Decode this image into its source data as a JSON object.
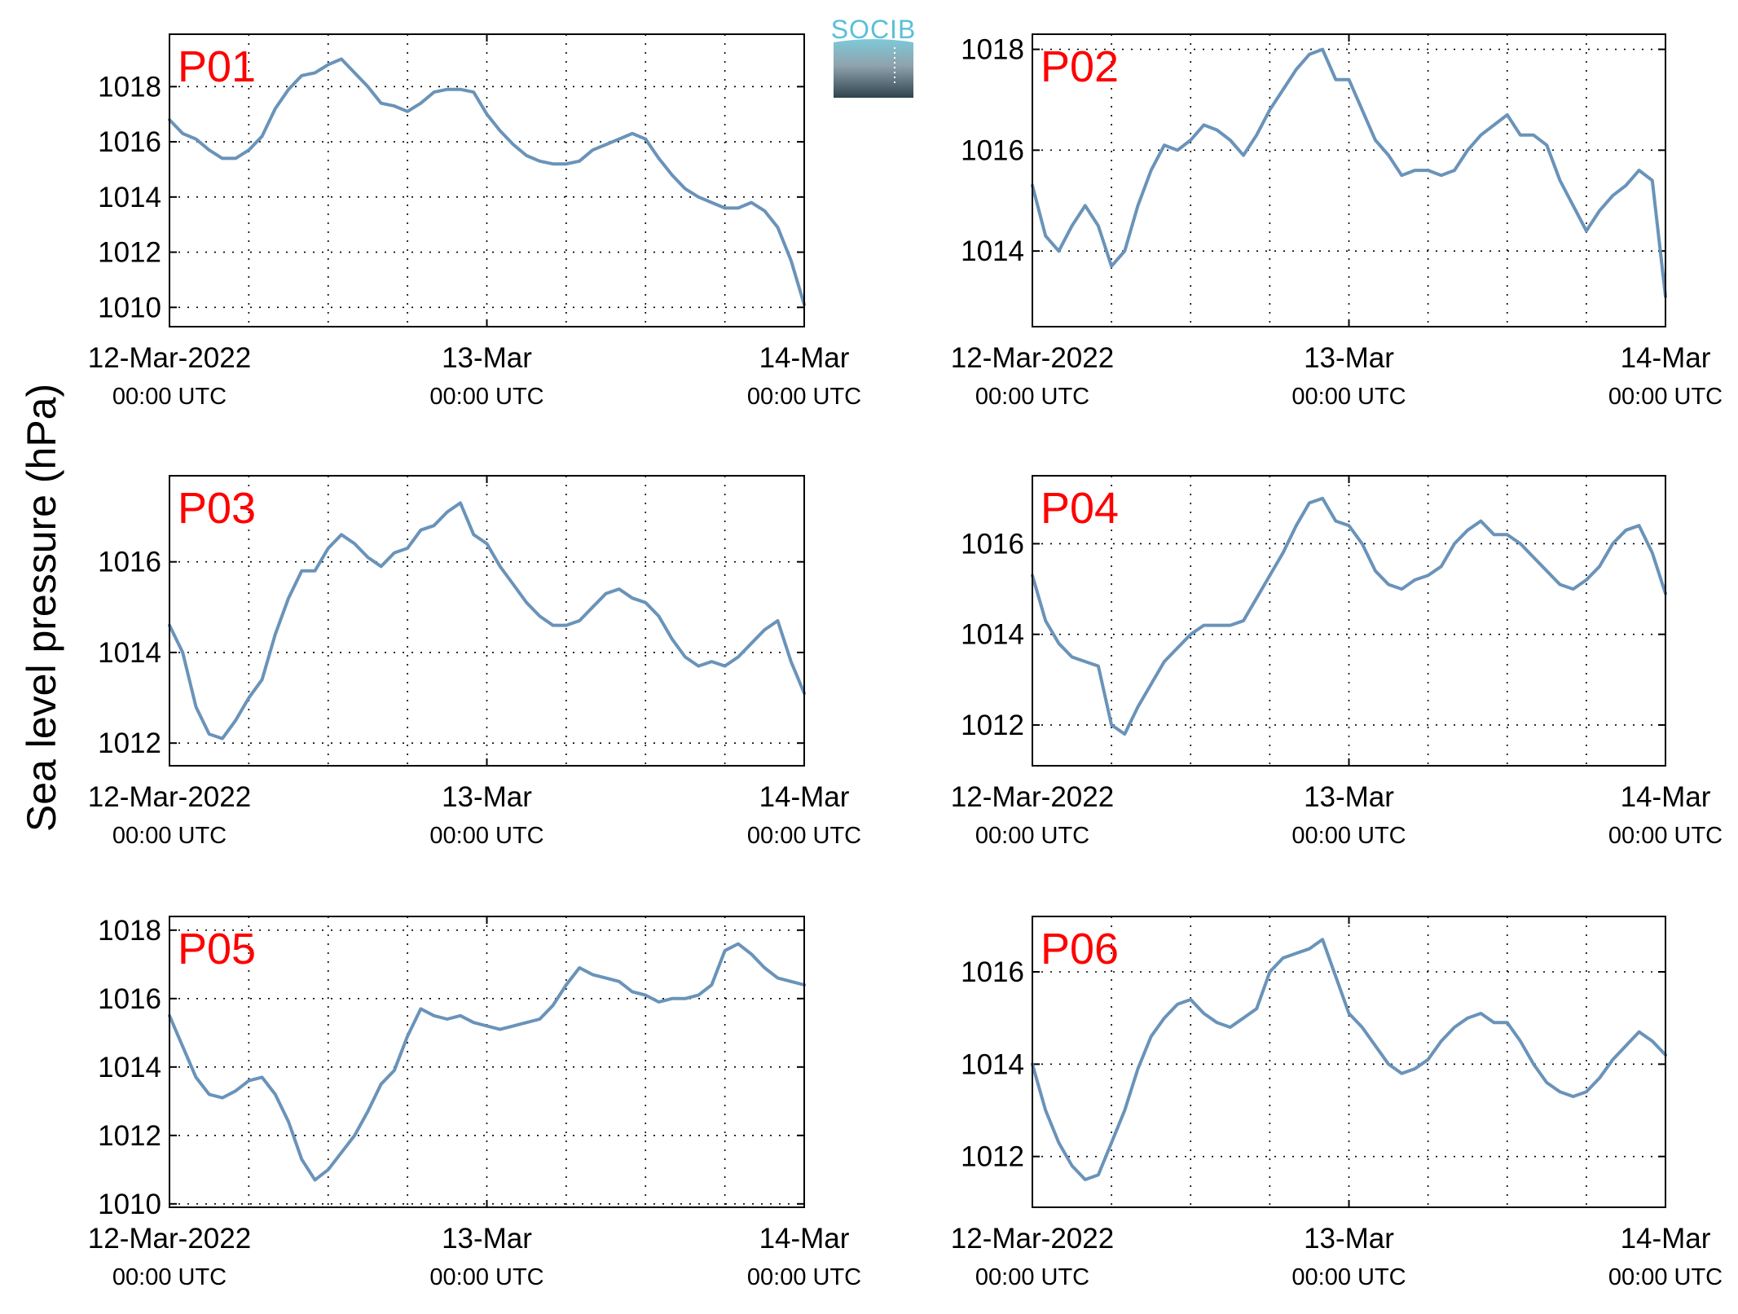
{
  "ylabel": "Sea level pressure (hPa)",
  "logo": {
    "text": "SOCIB"
  },
  "colors": {
    "series": "#6a93b9",
    "panel_label": "#ff0000"
  },
  "x_ticks": [
    {
      "main": "12-Mar-2022",
      "sub": "00:00 UTC",
      "hours": 0
    },
    {
      "main": "13-Mar",
      "sub": "00:00 UTC",
      "hours": 24
    },
    {
      "main": "14-Mar",
      "sub": "00:00 UTC",
      "hours": 48
    }
  ],
  "chart_data": [
    {
      "type": "line",
      "label": "P01",
      "x_unit": "hours since 12-Mar-2022 00:00 UTC",
      "xlim": [
        0,
        48
      ],
      "ylim": [
        1009.3,
        1019.9
      ],
      "yticks": [
        1010,
        1012,
        1014,
        1016,
        1018
      ],
      "grid": true,
      "x": [
        0,
        1,
        2,
        3,
        4,
        5,
        6,
        7,
        8,
        9,
        10,
        11,
        12,
        13,
        14,
        15,
        16,
        17,
        18,
        19,
        20,
        21,
        22,
        23,
        24,
        25,
        26,
        27,
        28,
        29,
        30,
        31,
        32,
        33,
        34,
        35,
        36,
        37,
        38,
        39,
        40,
        41,
        42,
        43,
        44,
        45,
        46,
        47,
        48
      ],
      "y": [
        1016.8,
        1016.3,
        1016.1,
        1015.7,
        1015.4,
        1015.4,
        1015.7,
        1016.2,
        1017.2,
        1017.9,
        1018.4,
        1018.5,
        1018.8,
        1019.0,
        1018.5,
        1018.0,
        1017.4,
        1017.3,
        1017.1,
        1017.4,
        1017.8,
        1017.9,
        1017.9,
        1017.8,
        1017.0,
        1016.4,
        1015.9,
        1015.5,
        1015.3,
        1015.2,
        1015.2,
        1015.3,
        1015.7,
        1015.9,
        1016.1,
        1016.3,
        1016.1,
        1015.4,
        1014.8,
        1014.3,
        1014.0,
        1013.8,
        1013.6,
        1013.6,
        1013.8,
        1013.5,
        1012.9,
        1011.7,
        1010.1
      ]
    },
    {
      "type": "line",
      "label": "P02",
      "x_unit": "hours since 12-Mar-2022 00:00 UTC",
      "xlim": [
        0,
        48
      ],
      "ylim": [
        1012.5,
        1018.3
      ],
      "yticks": [
        1014,
        1016,
        1018
      ],
      "grid": true,
      "x": [
        0,
        1,
        2,
        3,
        4,
        5,
        6,
        7,
        8,
        9,
        10,
        11,
        12,
        13,
        14,
        15,
        16,
        17,
        18,
        19,
        20,
        21,
        22,
        23,
        24,
        25,
        26,
        27,
        28,
        29,
        30,
        31,
        32,
        33,
        34,
        35,
        36,
        37,
        38,
        39,
        40,
        41,
        42,
        43,
        44,
        45,
        46,
        47,
        48
      ],
      "y": [
        1015.3,
        1014.3,
        1014.0,
        1014.5,
        1014.9,
        1014.5,
        1013.7,
        1014.0,
        1014.9,
        1015.6,
        1016.1,
        1016.0,
        1016.2,
        1016.5,
        1016.4,
        1016.2,
        1015.9,
        1016.3,
        1016.8,
        1017.2,
        1017.6,
        1017.9,
        1018.0,
        1017.4,
        1017.4,
        1016.8,
        1016.2,
        1015.9,
        1015.5,
        1015.6,
        1015.6,
        1015.5,
        1015.6,
        1016.0,
        1016.3,
        1016.5,
        1016.7,
        1016.3,
        1016.3,
        1016.1,
        1015.4,
        1014.9,
        1014.4,
        1014.8,
        1015.1,
        1015.3,
        1015.6,
        1015.4,
        1013.1
      ]
    },
    {
      "type": "line",
      "label": "P03",
      "x_unit": "hours since 12-Mar-2022 00:00 UTC",
      "xlim": [
        0,
        48
      ],
      "ylim": [
        1011.5,
        1017.9
      ],
      "yticks": [
        1012,
        1014,
        1016
      ],
      "grid": true,
      "x": [
        0,
        1,
        2,
        3,
        4,
        5,
        6,
        7,
        8,
        9,
        10,
        11,
        12,
        13,
        14,
        15,
        16,
        17,
        18,
        19,
        20,
        21,
        22,
        23,
        24,
        25,
        26,
        27,
        28,
        29,
        30,
        31,
        32,
        33,
        34,
        35,
        36,
        37,
        38,
        39,
        40,
        41,
        42,
        43,
        44,
        45,
        46,
        47,
        48
      ],
      "y": [
        1014.6,
        1014.0,
        1012.8,
        1012.2,
        1012.1,
        1012.5,
        1013.0,
        1013.4,
        1014.4,
        1015.2,
        1015.8,
        1015.8,
        1016.3,
        1016.6,
        1016.4,
        1016.1,
        1015.9,
        1016.2,
        1016.3,
        1016.7,
        1016.8,
        1017.1,
        1017.3,
        1016.6,
        1016.4,
        1015.9,
        1015.5,
        1015.1,
        1014.8,
        1014.6,
        1014.6,
        1014.7,
        1015.0,
        1015.3,
        1015.4,
        1015.2,
        1015.1,
        1014.8,
        1014.3,
        1013.9,
        1013.7,
        1013.8,
        1013.7,
        1013.9,
        1014.2,
        1014.5,
        1014.7,
        1013.8,
        1013.1
      ]
    },
    {
      "type": "line",
      "label": "P04",
      "x_unit": "hours since 12-Mar-2022 00:00 UTC",
      "xlim": [
        0,
        48
      ],
      "ylim": [
        1011.1,
        1017.5
      ],
      "yticks": [
        1012,
        1014,
        1016
      ],
      "grid": true,
      "x": [
        0,
        1,
        2,
        3,
        4,
        5,
        6,
        7,
        8,
        9,
        10,
        11,
        12,
        13,
        14,
        15,
        16,
        17,
        18,
        19,
        20,
        21,
        22,
        23,
        24,
        25,
        26,
        27,
        28,
        29,
        30,
        31,
        32,
        33,
        34,
        35,
        36,
        37,
        38,
        39,
        40,
        41,
        42,
        43,
        44,
        45,
        46,
        47,
        48
      ],
      "y": [
        1015.3,
        1014.3,
        1013.8,
        1013.5,
        1013.4,
        1013.3,
        1012.0,
        1011.8,
        1012.4,
        1012.9,
        1013.4,
        1013.7,
        1014.0,
        1014.2,
        1014.2,
        1014.2,
        1014.3,
        1014.8,
        1015.3,
        1015.8,
        1016.4,
        1016.9,
        1017.0,
        1016.5,
        1016.4,
        1016.0,
        1015.4,
        1015.1,
        1015.0,
        1015.2,
        1015.3,
        1015.5,
        1016.0,
        1016.3,
        1016.5,
        1016.2,
        1016.2,
        1016.0,
        1015.7,
        1015.4,
        1015.1,
        1015.0,
        1015.2,
        1015.5,
        1016.0,
        1016.3,
        1016.4,
        1015.8,
        1014.9
      ]
    },
    {
      "type": "line",
      "label": "P05",
      "x_unit": "hours since 12-Mar-2022 00:00 UTC",
      "xlim": [
        0,
        48
      ],
      "ylim": [
        1009.9,
        1018.4
      ],
      "yticks": [
        1010,
        1012,
        1014,
        1016,
        1018
      ],
      "grid": true,
      "x": [
        0,
        1,
        2,
        3,
        4,
        5,
        6,
        7,
        8,
        9,
        10,
        11,
        12,
        13,
        14,
        15,
        16,
        17,
        18,
        19,
        20,
        21,
        22,
        23,
        24,
        25,
        26,
        27,
        28,
        29,
        30,
        31,
        32,
        33,
        34,
        35,
        36,
        37,
        38,
        39,
        40,
        41,
        42,
        43,
        44,
        45,
        46,
        47,
        48
      ],
      "y": [
        1015.5,
        1014.6,
        1013.7,
        1013.2,
        1013.1,
        1013.3,
        1013.6,
        1013.7,
        1013.2,
        1012.4,
        1011.3,
        1010.7,
        1011.0,
        1011.5,
        1012.0,
        1012.7,
        1013.5,
        1013.9,
        1014.9,
        1015.7,
        1015.5,
        1015.4,
        1015.5,
        1015.3,
        1015.2,
        1015.1,
        1015.2,
        1015.3,
        1015.4,
        1015.8,
        1016.4,
        1016.9,
        1016.7,
        1016.6,
        1016.5,
        1016.2,
        1016.1,
        1015.9,
        1016.0,
        1016.0,
        1016.1,
        1016.4,
        1017.4,
        1017.6,
        1017.3,
        1016.9,
        1016.6,
        1016.5,
        1016.4
      ]
    },
    {
      "type": "line",
      "label": "P06",
      "x_unit": "hours since 12-Mar-2022 00:00 UTC",
      "xlim": [
        0,
        48
      ],
      "ylim": [
        1010.9,
        1017.2
      ],
      "yticks": [
        1012,
        1014,
        1016
      ],
      "grid": true,
      "x": [
        0,
        1,
        2,
        3,
        4,
        5,
        6,
        7,
        8,
        9,
        10,
        11,
        12,
        13,
        14,
        15,
        16,
        17,
        18,
        19,
        20,
        21,
        22,
        23,
        24,
        25,
        26,
        27,
        28,
        29,
        30,
        31,
        32,
        33,
        34,
        35,
        36,
        37,
        38,
        39,
        40,
        41,
        42,
        43,
        44,
        45,
        46,
        47,
        48
      ],
      "y": [
        1014.0,
        1013.0,
        1012.3,
        1011.8,
        1011.5,
        1011.6,
        1012.3,
        1013.0,
        1013.9,
        1014.6,
        1015.0,
        1015.3,
        1015.4,
        1015.1,
        1014.9,
        1014.8,
        1015.0,
        1015.2,
        1016.0,
        1016.3,
        1016.4,
        1016.5,
        1016.7,
        1015.9,
        1015.1,
        1014.8,
        1014.4,
        1014.0,
        1013.8,
        1013.9,
        1014.1,
        1014.5,
        1014.8,
        1015.0,
        1015.1,
        1014.9,
        1014.9,
        1014.5,
        1014.0,
        1013.6,
        1013.4,
        1013.3,
        1013.4,
        1013.7,
        1014.1,
        1014.4,
        1014.7,
        1014.5,
        1014.2
      ]
    }
  ]
}
